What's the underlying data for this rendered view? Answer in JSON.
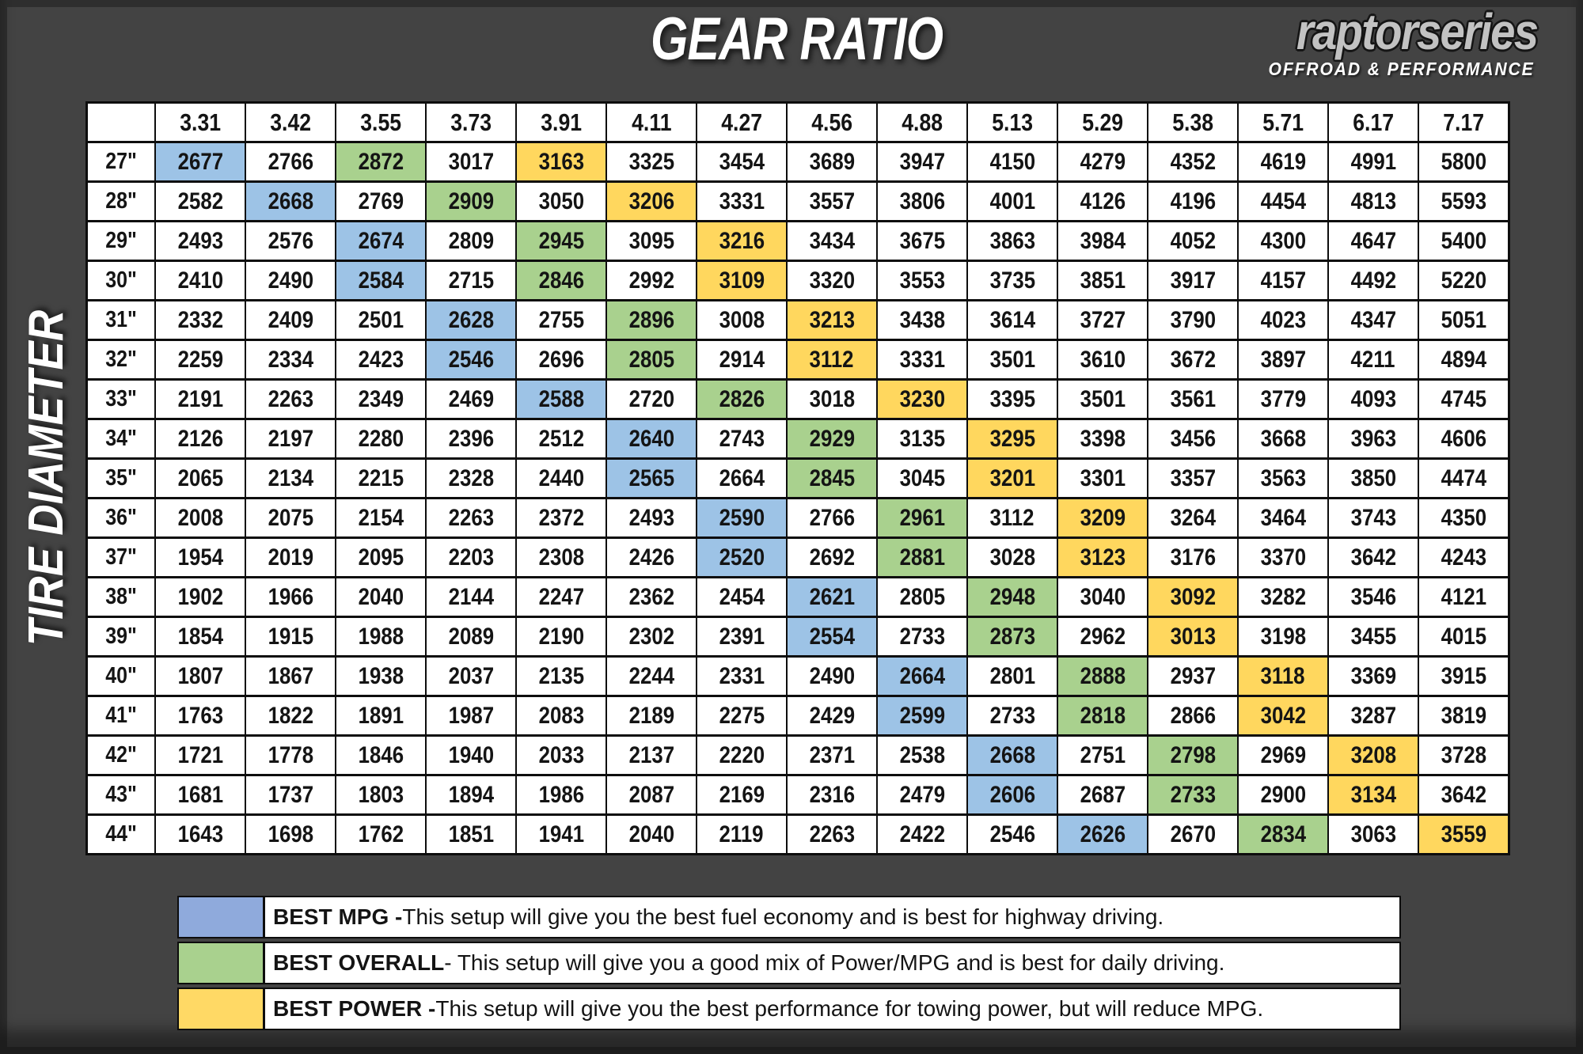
{
  "title": "GEAR RATIO",
  "side_label": "TIRE DIAMETER",
  "logo": {
    "name": "raptorseries",
    "tagline": "OFFROAD & PERFORMANCE"
  },
  "colors": {
    "background": "#434343",
    "cell_background": "#ffffff",
    "border": "#0d0d0d",
    "best_mpg_cell": "#9DC3E6",
    "best_overall_cell": "#A9D18E",
    "best_power_cell": "#FFD75E",
    "legend_mpg_swatch": "#8FAADC",
    "legend_overall_swatch": "#A9D18E",
    "legend_power_swatch": "#FFD965",
    "logo_gray": "#c2c2c2",
    "title_white": "#ffffff"
  },
  "chart_data": {
    "type": "table",
    "title": "GEAR RATIO",
    "x_label": "GEAR RATIO",
    "y_label": "TIRE DIAMETER",
    "columns": [
      "3.31",
      "3.42",
      "3.55",
      "3.73",
      "3.91",
      "4.11",
      "4.27",
      "4.56",
      "4.88",
      "5.13",
      "5.29",
      "5.38",
      "5.71",
      "6.17",
      "7.17"
    ],
    "row_labels": [
      "27\"",
      "28\"",
      "29\"",
      "30\"",
      "31\"",
      "32\"",
      "33\"",
      "34\"",
      "35\"",
      "36\"",
      "37\"",
      "38\"",
      "39\"",
      "40\"",
      "41\"",
      "42\"",
      "43\"",
      "44\""
    ],
    "values": [
      [
        2677,
        2766,
        2872,
        3017,
        3163,
        3325,
        3454,
        3689,
        3947,
        4150,
        4279,
        4352,
        4619,
        4991,
        5800
      ],
      [
        2582,
        2668,
        2769,
        2909,
        3050,
        3206,
        3331,
        3557,
        3806,
        4001,
        4126,
        4196,
        4454,
        4813,
        5593
      ],
      [
        2493,
        2576,
        2674,
        2809,
        2945,
        3095,
        3216,
        3434,
        3675,
        3863,
        3984,
        4052,
        4300,
        4647,
        5400
      ],
      [
        2410,
        2490,
        2584,
        2715,
        2846,
        2992,
        3109,
        3320,
        3553,
        3735,
        3851,
        3917,
        4157,
        4492,
        5220
      ],
      [
        2332,
        2409,
        2501,
        2628,
        2755,
        2896,
        3008,
        3213,
        3438,
        3614,
        3727,
        3790,
        4023,
        4347,
        5051
      ],
      [
        2259,
        2334,
        2423,
        2546,
        2696,
        2805,
        2914,
        3112,
        3331,
        3501,
        3610,
        3672,
        3897,
        4211,
        4894
      ],
      [
        2191,
        2263,
        2349,
        2469,
        2588,
        2720,
        2826,
        3018,
        3230,
        3395,
        3501,
        3561,
        3779,
        4093,
        4745
      ],
      [
        2126,
        2197,
        2280,
        2396,
        2512,
        2640,
        2743,
        2929,
        3135,
        3295,
        3398,
        3456,
        3668,
        3963,
        4606
      ],
      [
        2065,
        2134,
        2215,
        2328,
        2440,
        2565,
        2664,
        2845,
        3045,
        3201,
        3301,
        3357,
        3563,
        3850,
        4474
      ],
      [
        2008,
        2075,
        2154,
        2263,
        2372,
        2493,
        2590,
        2766,
        2961,
        3112,
        3209,
        3264,
        3464,
        3743,
        4350
      ],
      [
        1954,
        2019,
        2095,
        2203,
        2308,
        2426,
        2520,
        2692,
        2881,
        3028,
        3123,
        3176,
        3370,
        3642,
        4243
      ],
      [
        1902,
        1966,
        2040,
        2144,
        2247,
        2362,
        2454,
        2621,
        2805,
        2948,
        3040,
        3092,
        3282,
        3546,
        4121
      ],
      [
        1854,
        1915,
        1988,
        2089,
        2190,
        2302,
        2391,
        2554,
        2733,
        2873,
        2962,
        3013,
        3198,
        3455,
        4015
      ],
      [
        1807,
        1867,
        1938,
        2037,
        2135,
        2244,
        2331,
        2490,
        2664,
        2801,
        2888,
        2937,
        3118,
        3369,
        3915
      ],
      [
        1763,
        1822,
        1891,
        1987,
        2083,
        2189,
        2275,
        2429,
        2599,
        2733,
        2818,
        2866,
        3042,
        3287,
        3819
      ],
      [
        1721,
        1778,
        1846,
        1940,
        2033,
        2137,
        2220,
        2371,
        2538,
        2668,
        2751,
        2798,
        2969,
        3208,
        3728
      ],
      [
        1681,
        1737,
        1803,
        1894,
        1986,
        2087,
        2169,
        2316,
        2479,
        2606,
        2687,
        2733,
        2900,
        3134,
        3642
      ],
      [
        1643,
        1698,
        1762,
        1851,
        1941,
        2040,
        2119,
        2263,
        2422,
        2546,
        2626,
        2670,
        2834,
        3063,
        3559
      ]
    ],
    "highlights": [
      {
        "best_mpg": 0,
        "best_overall": 2,
        "best_power": 4
      },
      {
        "best_mpg": 1,
        "best_overall": 3,
        "best_power": 5
      },
      {
        "best_mpg": 2,
        "best_overall": 4,
        "best_power": 6
      },
      {
        "best_mpg": 2,
        "best_overall": 4,
        "best_power": 6
      },
      {
        "best_mpg": 3,
        "best_overall": 5,
        "best_power": 7
      },
      {
        "best_mpg": 3,
        "best_overall": 5,
        "best_power": 7
      },
      {
        "best_mpg": 4,
        "best_overall": 6,
        "best_power": 8
      },
      {
        "best_mpg": 5,
        "best_overall": 7,
        "best_power": 9
      },
      {
        "best_mpg": 5,
        "best_overall": 7,
        "best_power": 9
      },
      {
        "best_mpg": 6,
        "best_overall": 8,
        "best_power": 10
      },
      {
        "best_mpg": 6,
        "best_overall": 8,
        "best_power": 10
      },
      {
        "best_mpg": 7,
        "best_overall": 9,
        "best_power": 11
      },
      {
        "best_mpg": 7,
        "best_overall": 9,
        "best_power": 11
      },
      {
        "best_mpg": 8,
        "best_overall": 10,
        "best_power": 12
      },
      {
        "best_mpg": 8,
        "best_overall": 10,
        "best_power": 12
      },
      {
        "best_mpg": 9,
        "best_overall": 11,
        "best_power": 13
      },
      {
        "best_mpg": 9,
        "best_overall": 11,
        "best_power": 13
      },
      {
        "best_mpg": 10,
        "best_overall": 12,
        "best_power": 14
      }
    ],
    "legend_position": "bottom",
    "grid": true
  },
  "legend": {
    "items": [
      {
        "key": "best_mpg",
        "swatch": "#8FAADC",
        "label": "BEST MPG -",
        "text": " This setup will give you the best fuel economy and is best for highway driving."
      },
      {
        "key": "best_overall",
        "swatch": "#A9D18E",
        "label": "BEST OVERALL",
        "text": " - This setup will give you a good mix of Power/MPG and is best for daily driving."
      },
      {
        "key": "best_power",
        "swatch": "#FFD965",
        "label": "BEST POWER -",
        "text": " This setup will give you the best performance for towing power, but will reduce MPG."
      }
    ]
  }
}
